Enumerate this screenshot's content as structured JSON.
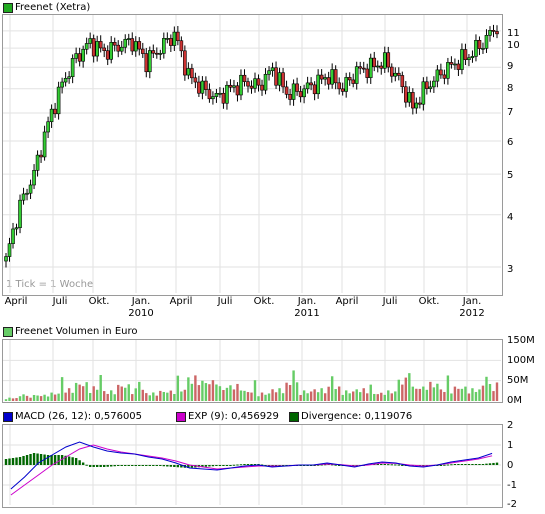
{
  "price_panel": {
    "legend": "Freenet (Xetra)",
    "legend_color": "#22aa22",
    "tick_note": "1 Tick = 1 Woche",
    "y_ticks": [
      "11",
      "10",
      "9",
      "8",
      "7",
      "6",
      "5",
      "4",
      "3"
    ]
  },
  "x_axis": {
    "labels": [
      {
        "text": "April",
        "sub": ""
      },
      {
        "text": "Juli",
        "sub": ""
      },
      {
        "text": "Okt.",
        "sub": ""
      },
      {
        "text": "Jan.",
        "sub": "2010"
      },
      {
        "text": "April",
        "sub": ""
      },
      {
        "text": "Juli",
        "sub": ""
      },
      {
        "text": "Okt.",
        "sub": ""
      },
      {
        "text": "Jan.",
        "sub": "2011"
      },
      {
        "text": "April",
        "sub": ""
      },
      {
        "text": "Juli",
        "sub": ""
      },
      {
        "text": "Okt.",
        "sub": ""
      },
      {
        "text": "Jan.",
        "sub": "2012"
      }
    ]
  },
  "volume_panel": {
    "legend": "Freenet Volumen in Euro",
    "legend_color": "#66cc66",
    "y_ticks": [
      "150M",
      "100M",
      "50M",
      "0M"
    ],
    "up_color": "#66cc66",
    "down_color": "#cc6666"
  },
  "macd_panel": {
    "macd_label": "MACD (26, 12): 0,576005",
    "macd_color": "#0000cc",
    "exp_label": "EXP (9): 0,456929",
    "exp_color": "#cc00cc",
    "div_label": "Divergence: 0,119076",
    "div_color": "#006600",
    "y_ticks": [
      "2",
      "1",
      "0",
      "-1",
      "-2"
    ]
  },
  "chart_data": [
    {
      "type": "candlestick",
      "title": "Freenet (Xetra)",
      "scale": "log",
      "ylim": [
        2.6,
        12
      ],
      "x_dates": [
        "2009-03",
        "2009-04",
        "2009-05",
        "2009-06",
        "2009-07",
        "2009-08",
        "2009-09",
        "2009-10",
        "2009-11",
        "2009-12",
        "2010-01",
        "2010-02",
        "2010-03",
        "2010-04",
        "2010-05",
        "2010-06",
        "2010-07",
        "2010-08",
        "2010-09",
        "2010-10",
        "2010-11",
        "2010-12",
        "2011-01",
        "2011-02",
        "2011-03",
        "2011-04",
        "2011-05",
        "2011-06",
        "2011-07",
        "2011-08",
        "2011-09",
        "2011-10",
        "2011-11",
        "2011-12",
        "2012-01",
        "2012-02"
      ],
      "close": [
        3.1,
        4.2,
        5.0,
        6.6,
        8.2,
        9.5,
        10.3,
        9.8,
        10.1,
        10.4,
        9.3,
        10.0,
        10.8,
        8.6,
        8.0,
        7.6,
        8.0,
        8.3,
        8.1,
        8.9,
        7.8,
        7.9,
        8.2,
        8.6,
        8.0,
        8.8,
        9.0,
        9.3,
        8.4,
        7.2,
        8.1,
        8.7,
        9.2,
        9.6,
        10.3,
        11.3
      ]
    },
    {
      "type": "bar",
      "title": "Freenet Volumen in Euro",
      "ylim": [
        0,
        150
      ],
      "unit": "M",
      "values_M": [
        8,
        12,
        15,
        20,
        30,
        45,
        35,
        25,
        40,
        30,
        20,
        25,
        30,
        60,
        50,
        35,
        40,
        25,
        20,
        30,
        45,
        25,
        30,
        35,
        25,
        30,
        20,
        25,
        55,
        35,
        45,
        30,
        35,
        30,
        40,
        45
      ]
    },
    {
      "type": "line",
      "title": "MACD",
      "ylim": [
        -2,
        2
      ],
      "series": [
        {
          "name": "MACD (26, 12)",
          "values": [
            -1.2,
            -0.6,
            0.1,
            0.5,
            0.9,
            1.15,
            0.9,
            0.7,
            0.6,
            0.55,
            0.4,
            0.3,
            0.1,
            -0.15,
            -0.2,
            -0.25,
            -0.15,
            -0.05,
            0.0,
            -0.1,
            -0.05,
            0.0,
            0.0,
            0.1,
            0.0,
            -0.1,
            0.05,
            0.15,
            0.1,
            -0.05,
            -0.1,
            0.0,
            0.15,
            0.25,
            0.35,
            0.58
          ]
        },
        {
          "name": "EXP (9)",
          "values": [
            -1.5,
            -1.0,
            -0.5,
            0.0,
            0.4,
            0.8,
            1.0,
            0.8,
            0.65,
            0.55,
            0.45,
            0.35,
            0.2,
            0.0,
            -0.1,
            -0.2,
            -0.15,
            -0.1,
            -0.05,
            -0.05,
            -0.05,
            0.0,
            0.0,
            0.05,
            0.02,
            -0.05,
            0.0,
            0.1,
            0.08,
            0.0,
            -0.05,
            0.0,
            0.1,
            0.2,
            0.3,
            0.46
          ]
        }
      ],
      "divergence_last": 0.119076
    }
  ]
}
